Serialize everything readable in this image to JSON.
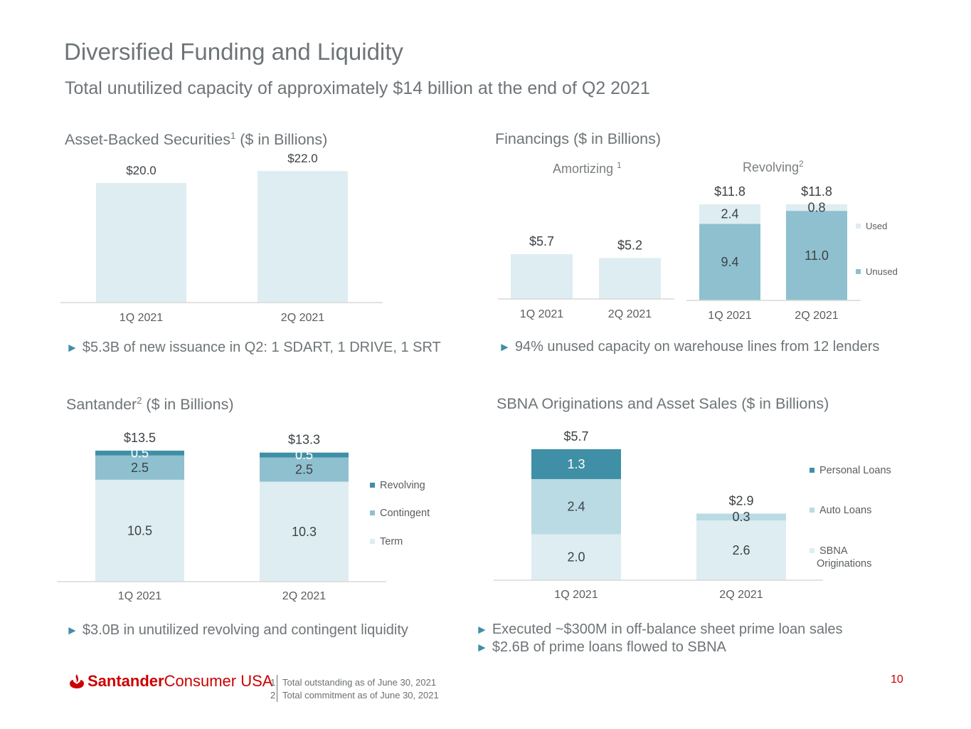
{
  "header": {
    "title": "Diversified Funding and Liquidity",
    "subtitle": "Total unutilized capacity of approximately $14 billion at the end of Q2 2021"
  },
  "sections": {
    "abs": {
      "title": "Asset-Backed Securities",
      "sup": "1",
      "units": " ($ in Billions)",
      "bullet": "$5.3B of new issuance in Q2: 1 SDART, 1 DRIVE, 1 SRT"
    },
    "financings": {
      "title": "Financings ($ in Billions)",
      "amortizing_title": "Amortizing ",
      "amortizing_sup": "1",
      "revolving_title": "Revolving",
      "revolving_sup": "2",
      "bullet": "94% unused capacity on warehouse lines from 12 lenders"
    },
    "santander": {
      "title": "Santander",
      "sup": "2",
      "units": " ($ in Billions)",
      "bullet": "$3.0B in unutilized revolving and contingent liquidity"
    },
    "sbna": {
      "title": "SBNA Originations and Asset Sales ($ in Billions)",
      "bullets": [
        "Executed ~$300M in off-balance sheet prime loan sales",
        "$2.6B of prime loans flowed to SBNA"
      ]
    }
  },
  "bullet_marker": "►",
  "colors": {
    "light": "#deedf2",
    "mid": "#8fc0cf",
    "dark": "#3f8fa6",
    "sbna_auto": "#badbe3",
    "brand_red": "#cc0000"
  },
  "chart_data": [
    {
      "id": "abs",
      "type": "bar",
      "title": "Asset-Backed Securities ($ in Billions)",
      "categories": [
        "1Q 2021",
        "2Q 2021"
      ],
      "values": [
        20.0,
        22.0
      ],
      "labels": [
        "$20.0",
        "$22.0"
      ],
      "ylim": [
        0,
        24
      ],
      "grid": false,
      "legend": "none"
    },
    {
      "id": "amortizing",
      "type": "bar",
      "title": "Amortizing",
      "categories": [
        "1Q 2021",
        "2Q 2021"
      ],
      "values": [
        5.7,
        5.2
      ],
      "labels": [
        "$5.7",
        "$5.2"
      ],
      "ylim": [
        0,
        12
      ],
      "grid": false,
      "legend": "none"
    },
    {
      "id": "revolving",
      "type": "bar",
      "stacked": true,
      "title": "Revolving",
      "categories": [
        "1Q 2021",
        "2Q 2021"
      ],
      "series": [
        {
          "name": "Unused",
          "values": [
            9.4,
            11.0
          ]
        },
        {
          "name": "Used",
          "values": [
            2.4,
            0.8
          ]
        }
      ],
      "totals": [
        "$11.8",
        "$11.8"
      ],
      "ylim": [
        0,
        12
      ],
      "grid": false,
      "legend": "right"
    },
    {
      "id": "santander",
      "type": "bar",
      "stacked": true,
      "title": "Santander ($ in Billions)",
      "categories": [
        "1Q 2021",
        "2Q 2021"
      ],
      "series": [
        {
          "name": "Term",
          "values": [
            10.5,
            10.3
          ]
        },
        {
          "name": "Contingent",
          "values": [
            2.5,
            2.5
          ]
        },
        {
          "name": "Revolving",
          "values": [
            0.5,
            0.5
          ]
        }
      ],
      "totals": [
        "$13.5",
        "$13.3"
      ],
      "ylim": [
        0,
        14
      ],
      "grid": false,
      "legend": "right"
    },
    {
      "id": "sbna",
      "type": "bar",
      "stacked": true,
      "title": "SBNA Originations and Asset Sales ($ in Billions)",
      "categories": [
        "1Q 2021",
        "2Q 2021"
      ],
      "series": [
        {
          "name": "SBNA Originations",
          "values": [
            2.0,
            2.6
          ]
        },
        {
          "name": "Auto Loans",
          "values": [
            2.4,
            0.3
          ]
        },
        {
          "name": "Personal Loans",
          "values": [
            1.3,
            0
          ]
        }
      ],
      "totals": [
        "$5.7",
        "$2.9"
      ],
      "ylim": [
        0,
        6
      ],
      "grid": false,
      "legend": "right"
    }
  ],
  "footer": {
    "logo_bold": "Santander",
    "logo_rest": " Consumer USA",
    "notes": [
      {
        "num": "1",
        "text": "Total outstanding as of June 30, 2021"
      },
      {
        "num": "2",
        "text": "Total commitment as of June 30, 2021"
      }
    ],
    "page_number": "10"
  }
}
